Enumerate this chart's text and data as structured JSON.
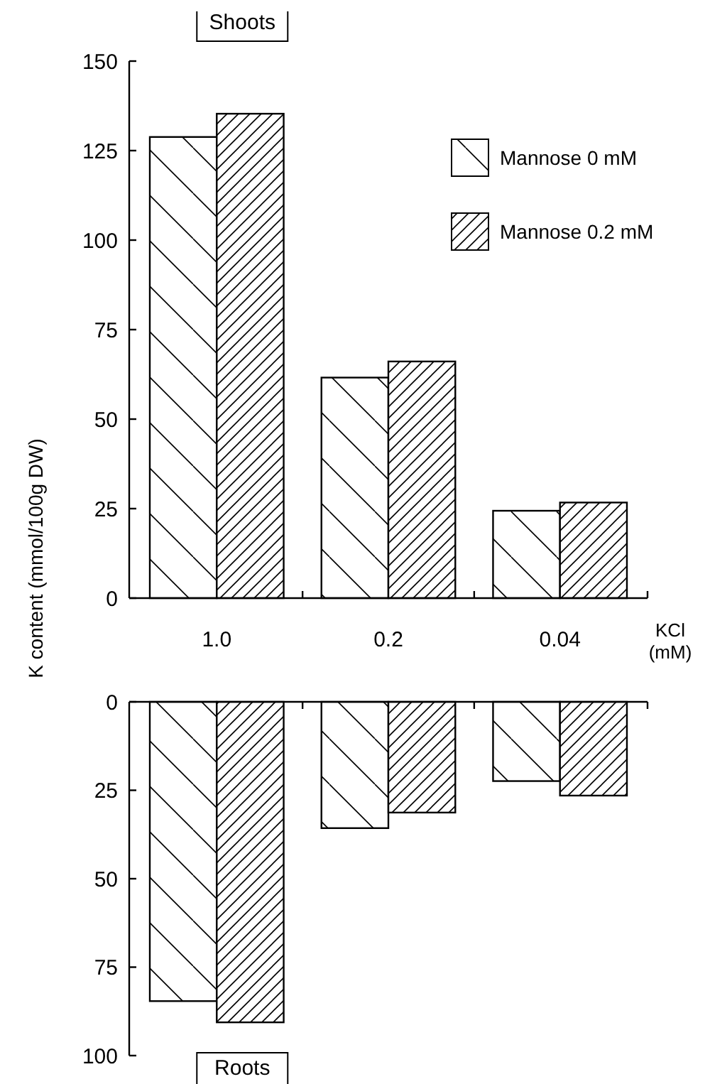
{
  "chart_data": [
    {
      "type": "bar",
      "title": "Shoots",
      "xlabel": "KCl (mM)",
      "ylabel": "K content (mmol/100g DW)",
      "categories": [
        "1.0",
        "0.2",
        "0.04"
      ],
      "series": [
        {
          "name": "Mannose 0 mM",
          "color": "#000000",
          "values": [
            128.8,
            61.6,
            24.4
          ]
        },
        {
          "name": "Mannose 0.2 mM",
          "color": "#000000",
          "values": [
            135.3,
            66.1,
            26.7
          ]
        }
      ],
      "ylim": [
        0,
        150
      ],
      "yticks": [
        0,
        25,
        50,
        75,
        100,
        125,
        150
      ],
      "grid": false,
      "legend": "top right"
    },
    {
      "type": "bar",
      "title": "Roots",
      "categories": [
        null,
        null,
        null
      ],
      "series": [
        {
          "color": "#000000",
          "values": [
            84.6,
            35.7,
            22.4
          ]
        },
        {
          "color": "#000000",
          "values": [
            90.6,
            31.3,
            26.5
          ]
        }
      ],
      "ylim": [
        100,
        0
      ],
      "yticks": [
        0,
        25,
        50,
        75,
        100
      ],
      "grid": false,
      "tick_labels": "y"
    }
  ]
}
